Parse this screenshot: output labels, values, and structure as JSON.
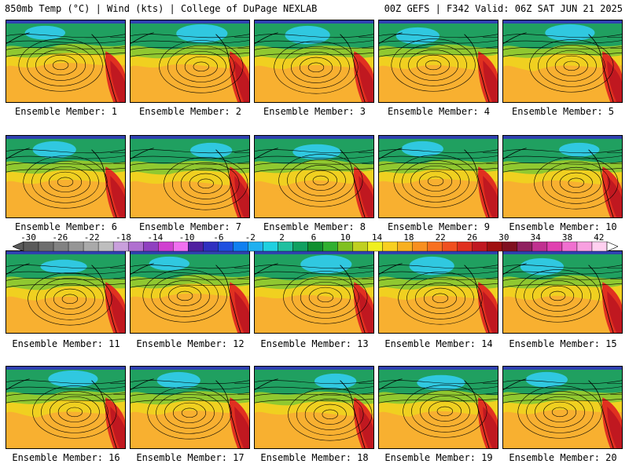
{
  "header": {
    "left": "850mb Temp (°C) | Wind (kts) | College of DuPage NEXLAB",
    "right": "00Z GEFS | F342 Valid: 06Z SAT JUN 21 2025"
  },
  "panels": [
    {
      "label": "Ensemble Member: 1"
    },
    {
      "label": "Ensemble Member: 2"
    },
    {
      "label": "Ensemble Member: 3"
    },
    {
      "label": "Ensemble Member: 4"
    },
    {
      "label": "Ensemble Member: 5"
    },
    {
      "label": "Ensemble Member: 6"
    },
    {
      "label": "Ensemble Member: 7"
    },
    {
      "label": "Ensemble Member: 8"
    },
    {
      "label": "Ensemble Member: 9"
    },
    {
      "label": "Ensemble Member: 10"
    },
    {
      "label": "Ensemble Member: 11"
    },
    {
      "label": "Ensemble Member: 12"
    },
    {
      "label": "Ensemble Member: 13"
    },
    {
      "label": "Ensemble Member: 14"
    },
    {
      "label": "Ensemble Member: 15"
    },
    {
      "label": "Ensemble Member: 16"
    },
    {
      "label": "Ensemble Member: 17"
    },
    {
      "label": "Ensemble Member: 18"
    },
    {
      "label": "Ensemble Member: 19"
    },
    {
      "label": "Ensemble Member: 20"
    }
  ],
  "colorbar": {
    "tick_labels": [
      "-30",
      "-26",
      "-22",
      "-18",
      "-14",
      "-10",
      "-6",
      "-2",
      "2",
      "6",
      "10",
      "14",
      "18",
      "22",
      "26",
      "30",
      "34",
      "38",
      "42"
    ],
    "colors": [
      "#5a5a5a",
      "#6e6e6e",
      "#828282",
      "#969696",
      "#aaaaaa",
      "#bebebe",
      "#c9a0dc",
      "#b070d0",
      "#9040c0",
      "#d040d0",
      "#f070f0",
      "#5020a0",
      "#3030c0",
      "#2050e0",
      "#1080f0",
      "#20b0f0",
      "#20d0e0",
      "#20c0a0",
      "#10a060",
      "#109030",
      "#30b030",
      "#80c020",
      "#c0d020",
      "#f0f020",
      "#f8d020",
      "#f8b020",
      "#f89020",
      "#f87020",
      "#f05020",
      "#e03020",
      "#c01820",
      "#a01010",
      "#801020",
      "#902060",
      "#c03090",
      "#e040b0",
      "#f070d0",
      "#f8a0e0",
      "#ffd0f0"
    ]
  },
  "palette": {
    "cold": "#30c8e0",
    "cool": "#20a060",
    "mild": "#90c830",
    "warm": "#f0d020",
    "hot": "#f8a020",
    "veryhot": "#e03020",
    "ocean": "#f8b030"
  }
}
